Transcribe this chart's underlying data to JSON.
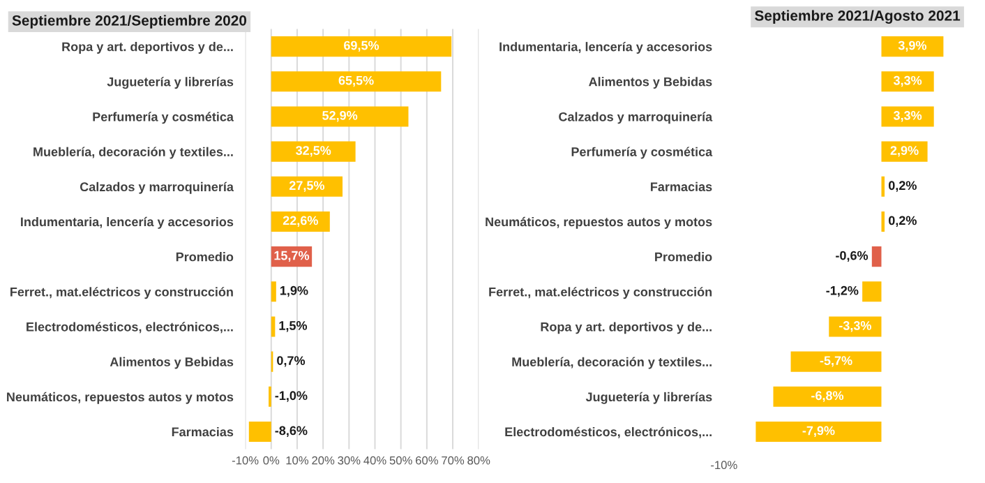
{
  "chart_data": [
    {
      "type": "bar",
      "orientation": "horizontal",
      "title": "Septiembre 2021/Septiembre 2020",
      "categories": [
        "Ropa y art. deportivos y de...",
        "Juguetería y librerías",
        "Perfumería y cosmética",
        "Mueblería, decoración y textiles...",
        "Calzados y marroquinería",
        "Indumentaria, lencería y accesorios",
        "Promedio",
        "Ferret., mat.eléctricos y construcción",
        "Electrodomésticos, electrónicos,...",
        "Alimentos y Bebidas",
        "Neumáticos, repuestos autos y motos",
        "Farmacias"
      ],
      "values": [
        69.5,
        65.5,
        52.9,
        32.5,
        27.5,
        22.6,
        15.7,
        1.9,
        1.5,
        0.7,
        -1.0,
        -8.6
      ],
      "colors": [
        "#ffc000",
        "#ffc000",
        "#ffc000",
        "#ffc000",
        "#ffc000",
        "#ffc000",
        "#e0604a",
        "#ffc000",
        "#ffc000",
        "#ffc000",
        "#ffc000",
        "#ffc000"
      ],
      "value_labels": [
        "69,5%",
        "65,5%",
        "52,9%",
        "32,5%",
        "27,5%",
        "22,6%",
        "15,7%",
        "1,9%",
        "1,5%",
        "0,7%",
        "-1,0%",
        "-8,6%"
      ],
      "xlim": [
        -10,
        80
      ],
      "xticks": [
        {
          "value": -10,
          "label": "-10%"
        },
        {
          "value": 0,
          "label": "0%"
        },
        {
          "value": 10,
          "label": "10%"
        },
        {
          "value": 20,
          "label": "20%"
        },
        {
          "value": 30,
          "label": "30%"
        },
        {
          "value": 40,
          "label": "40%"
        },
        {
          "value": 50,
          "label": "50%"
        },
        {
          "value": 60,
          "label": "60%"
        },
        {
          "value": 70,
          "label": "70%"
        },
        {
          "value": 80,
          "label": "80%"
        }
      ],
      "grid": "x"
    },
    {
      "type": "bar",
      "orientation": "horizontal",
      "title": "Septiembre 2021/Agosto 2021",
      "categories": [
        "Indumentaria, lencería y accesorios",
        "Alimentos y Bebidas",
        "Calzados y marroquinería",
        "Perfumería y cosmética",
        "Farmacias",
        "Neumáticos, repuestos autos y motos",
        "Promedio",
        "Ferret., mat.eléctricos y construcción",
        "Ropa y art. deportivos y de...",
        "Mueblería, decoración y textiles...",
        "Juguetería y librerías",
        "Electrodomésticos, electrónicos,..."
      ],
      "values": [
        3.9,
        3.3,
        3.3,
        2.9,
        0.2,
        0.2,
        -0.6,
        -1.2,
        -3.3,
        -5.7,
        -6.8,
        -7.9
      ],
      "colors": [
        "#ffc000",
        "#ffc000",
        "#ffc000",
        "#ffc000",
        "#ffc000",
        "#ffc000",
        "#e0604a",
        "#ffc000",
        "#ffc000",
        "#ffc000",
        "#ffc000",
        "#ffc000"
      ],
      "value_labels": [
        "3,9%",
        "3,3%",
        "3,3%",
        "2,9%",
        "0,2%",
        "0,2%",
        "-0,6%",
        "-1,2%",
        "-3,3%",
        "-5,7%",
        "-6,8%",
        "-7,9%"
      ],
      "annotations": [
        "-10%"
      ]
    }
  ]
}
